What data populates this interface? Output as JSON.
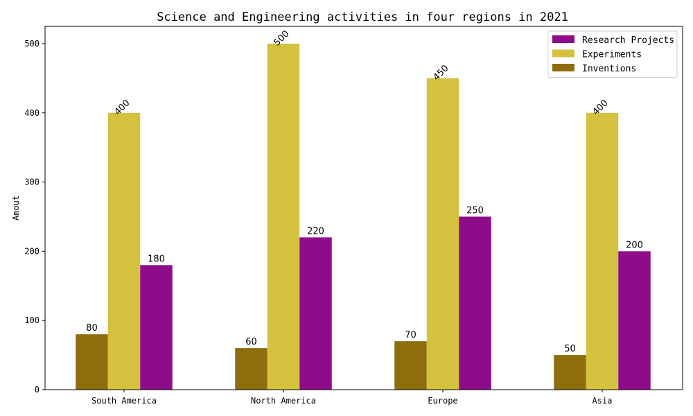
{
  "chart_data": {
    "type": "bar",
    "title": "Science and Engineering activities in four regions in 2021",
    "xlabel": "",
    "ylabel": "Amout",
    "categories": [
      "South America",
      "North America",
      "Europe",
      "Asia"
    ],
    "series": [
      {
        "name": "Research Projects",
        "values": [
          180,
          220,
          250,
          200
        ],
        "color": "#8e0c8a",
        "label_rotated": false
      },
      {
        "name": "Experiments",
        "values": [
          400,
          500,
          450,
          400
        ],
        "color": "#d4c23f",
        "label_rotated": true
      },
      {
        "name": "Inventions",
        "values": [
          80,
          60,
          70,
          50
        ],
        "color": "#8e6d0c",
        "label_rotated": false
      }
    ],
    "bar_order_within_group": [
      "Inventions",
      "Experiments",
      "Research Projects"
    ],
    "ylim": [
      0,
      525
    ],
    "yticks": [
      0,
      100,
      200,
      300,
      400,
      500
    ],
    "grid": false,
    "legend_position": "top-right"
  }
}
